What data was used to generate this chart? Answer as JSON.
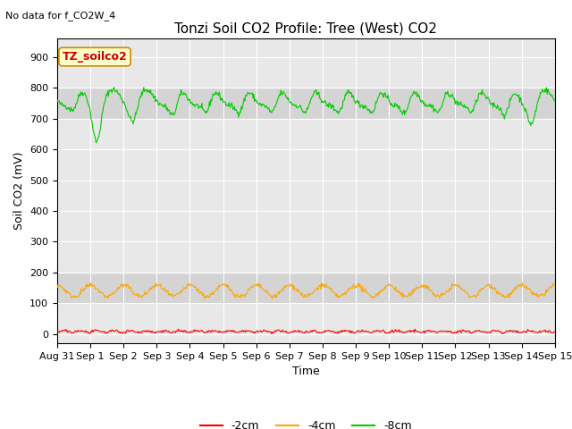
{
  "title": "Tonzi Soil CO2 Profile: Tree (West) CO2",
  "subtitle": "No data for f_CO2W_4",
  "ylabel": "Soil CO2 (mV)",
  "xlabel": "Time",
  "ylim": [
    -30,
    960
  ],
  "yticks": [
    0,
    100,
    200,
    300,
    400,
    500,
    600,
    700,
    800,
    900
  ],
  "xtick_labels": [
    "Aug 31",
    "Sep 1",
    "Sep 2",
    "Sep 3",
    "Sep 4",
    "Sep 5",
    "Sep 6",
    "Sep 7",
    "Sep 8",
    "Sep 9",
    "Sep 10",
    "Sep 11",
    "Sep 12",
    "Sep 13",
    "Sep 14",
    "Sep 15"
  ],
  "background_color": "#ffffff",
  "plot_bg_color": "#e8e8e8",
  "band_color": "#c8c8c8",
  "color_2cm": "#ff0000",
  "color_4cm": "#ffa500",
  "color_8cm": "#00cc00",
  "legend_label_2cm": "-2cm",
  "legend_label_4cm": "-4cm",
  "legend_label_8cm": "-8cm",
  "annotation_label": "TZ_soilco2",
  "annotation_bg": "#ffffcc",
  "annotation_border": "#cc8800",
  "annotation_text_color": "#cc0000",
  "title_fontsize": 11,
  "label_fontsize": 9,
  "tick_fontsize": 8,
  "legend_fontsize": 9,
  "subtitle_fontsize": 8
}
